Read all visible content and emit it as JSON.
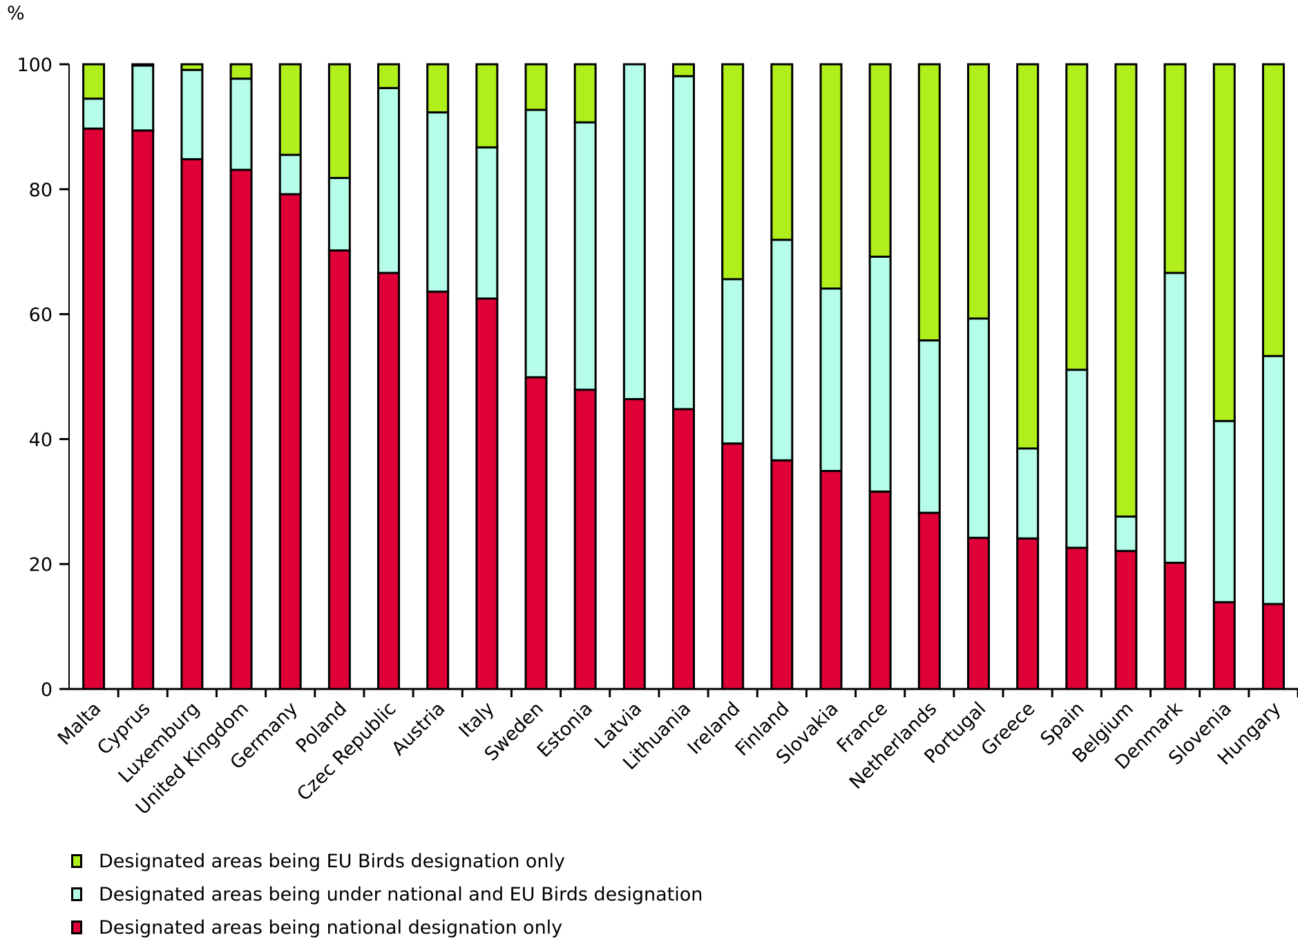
{
  "chart_data": {
    "type": "bar",
    "stacked": true,
    "title": "",
    "ylabel": "%",
    "xlabel": "",
    "ylim": [
      0,
      100
    ],
    "yticks": [
      0,
      20,
      40,
      60,
      80,
      100
    ],
    "grid": false,
    "legend_position": "bottom-left",
    "categories": [
      "Malta",
      "Cyprus",
      "Luxemburg",
      "United Kingdom",
      "Germany",
      "Poland",
      "Czec Republic",
      "Austria",
      "Italy",
      "Sweden",
      "Estonia",
      "Latvia",
      "Lithuania",
      "Ireland",
      "Finland",
      "Slovakia",
      "France",
      "Netherlands",
      "Portugal",
      "Greece",
      "Spain",
      "Belgium",
      "Denmark",
      "Slovenia",
      "Hungary"
    ],
    "series": [
      {
        "name": "Designated areas being national designation only",
        "color": "#de0036",
        "values": [
          89.7,
          89.4,
          84.8,
          83.1,
          79.2,
          70.2,
          66.6,
          63.6,
          62.5,
          49.9,
          47.9,
          46.4,
          44.8,
          39.3,
          36.6,
          34.9,
          31.6,
          28.2,
          24.2,
          24.1,
          22.6,
          22.1,
          20.2,
          13.9,
          13.6
        ]
      },
      {
        "name": "Designated areas being under national and EU Birds designation",
        "color": "#b5fde8",
        "values": [
          4.8,
          10.4,
          14.3,
          14.6,
          6.3,
          11.6,
          29.6,
          28.7,
          24.2,
          42.8,
          42.8,
          53.6,
          53.3,
          26.3,
          35.3,
          29.2,
          37.6,
          27.6,
          35.1,
          14.4,
          28.5,
          5.5,
          46.4,
          29.0,
          39.7
        ]
      },
      {
        "name": "Designated areas being EU Birds designation only",
        "color": "#b0ef1b",
        "values": [
          5.5,
          0.2,
          0.9,
          2.3,
          14.5,
          18.2,
          3.8,
          7.7,
          13.3,
          7.3,
          9.3,
          0.0,
          1.9,
          34.4,
          28.1,
          35.9,
          30.8,
          44.2,
          40.7,
          61.5,
          48.9,
          72.4,
          33.4,
          57.1,
          46.7
        ]
      }
    ]
  }
}
